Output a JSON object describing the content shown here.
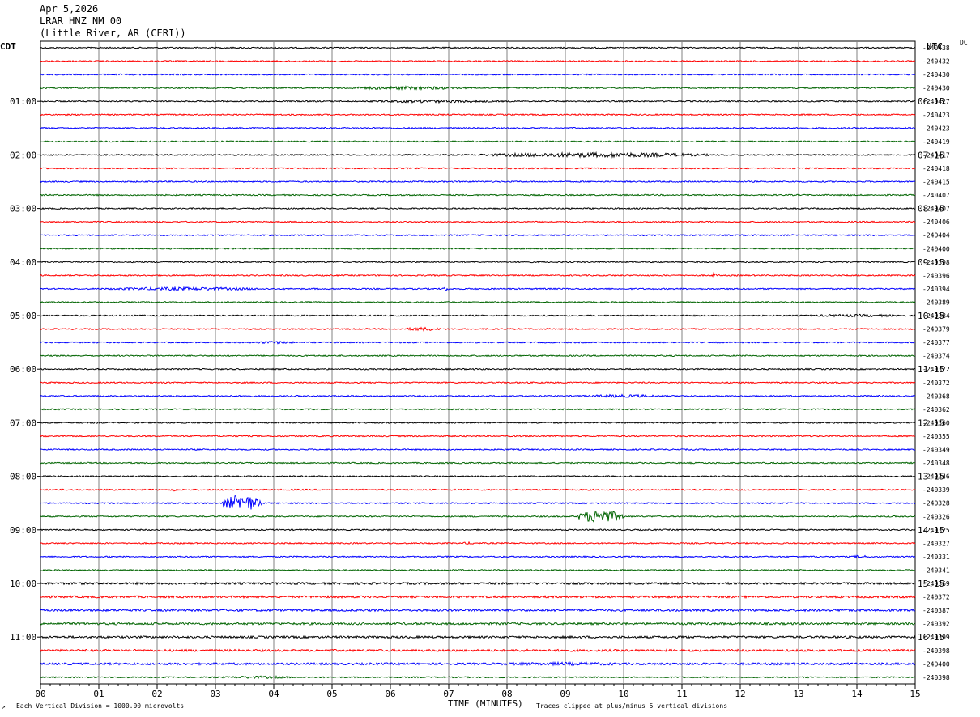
{
  "header": {
    "date": "Apr 5,2026",
    "station": "LRAR HNZ NM 00",
    "location": "(Little River, AR (CERI))"
  },
  "left_timezone": "CDT",
  "right_timezone": "UTC",
  "dc_label": "DC",
  "footer": {
    "scale_note": "Each Vertical Division = 1000.00 microvolts",
    "clip_note": "Traces clipped at plus/minus 5 vertical divisions",
    "corner_mark": "↗"
  },
  "chart_data": {
    "type": "line",
    "title": "",
    "xlabel": "TIME (MINUTES)",
    "ylabel": "",
    "xlim": [
      0,
      15
    ],
    "x_ticks": [
      "00",
      "01",
      "02",
      "03",
      "04",
      "05",
      "06",
      "07",
      "08",
      "09",
      "10",
      "11",
      "12",
      "13",
      "14",
      "15"
    ],
    "grid": true,
    "trace_colors": [
      "#000000",
      "#ff0000",
      "#0000ff",
      "#006400"
    ],
    "left_hour_labels": [
      "01:00",
      "02:00",
      "03:00",
      "04:00",
      "05:00",
      "06:00",
      "07:00",
      "08:00",
      "09:00",
      "10:00",
      "11:00"
    ],
    "right_hour_labels": [
      "06:15",
      "07:15",
      "08:15",
      "09:15",
      "10:15",
      "11:15",
      "12:15",
      "13:15",
      "14:15",
      "15:15",
      "16:15"
    ],
    "dc_offsets": [
      "240438",
      "240432",
      "240430",
      "240430",
      "240427",
      "240423",
      "240423",
      "240419",
      "240417",
      "240418",
      "240415",
      "240407",
      "240407",
      "240406",
      "240404",
      "240400",
      "240398",
      "240396",
      "240394",
      "240389",
      "240384",
      "240379",
      "240377",
      "240374",
      "240372",
      "240372",
      "240368",
      "240362",
      "240360",
      "240355",
      "240349",
      "240348",
      "240346",
      "240339",
      "240328",
      "240326",
      "240325",
      "240327",
      "240331",
      "240341",
      "240369",
      "240372",
      "240387",
      "240392",
      "240399",
      "240398",
      "240400",
      "240398"
    ],
    "events": [
      {
        "trace": 3,
        "minute": 5.0,
        "duration": 2.5,
        "amplitude": 2.0
      },
      {
        "trace": 4,
        "minute": 5.5,
        "duration": 2.5,
        "amplitude": 1.8
      },
      {
        "trace": 8,
        "minute": 7.5,
        "duration": 4.0,
        "amplitude": 3.0
      },
      {
        "trace": 17,
        "minute": 11.5,
        "duration": 0.1,
        "amplitude": 3.0
      },
      {
        "trace": 18,
        "minute": 1.0,
        "duration": 3.0,
        "amplitude": 2.0
      },
      {
        "trace": 18,
        "minute": 6.9,
        "duration": 0.1,
        "amplitude": 3.0
      },
      {
        "trace": 20,
        "minute": 13.0,
        "duration": 2.0,
        "amplitude": 1.6
      },
      {
        "trace": 21,
        "minute": 6.2,
        "duration": 0.7,
        "amplitude": 2.2
      },
      {
        "trace": 22,
        "minute": 3.5,
        "duration": 1.0,
        "amplitude": 1.6
      },
      {
        "trace": 26,
        "minute": 9.2,
        "duration": 1.6,
        "amplitude": 1.8
      },
      {
        "trace": 33,
        "minute": 2.25,
        "duration": 0.1,
        "amplitude": 2.5
      },
      {
        "trace": 34,
        "minute": 3.1,
        "duration": 0.7,
        "amplitude": 10.0
      },
      {
        "trace": 35,
        "minute": 9.2,
        "duration": 0.8,
        "amplitude": 8.0
      },
      {
        "trace": 37,
        "minute": 7.2,
        "duration": 0.3,
        "amplitude": 1.5
      },
      {
        "trace": 38,
        "minute": 13.9,
        "duration": 0.3,
        "amplitude": 2.0
      },
      {
        "trace": 45,
        "minute": 8.0,
        "duration": 0.5,
        "amplitude": 1.6
      },
      {
        "trace": 46,
        "minute": 7.5,
        "duration": 3.0,
        "amplitude": 2.0
      },
      {
        "trace": 47,
        "minute": 3.0,
        "duration": 1.5,
        "amplitude": 1.6
      }
    ]
  }
}
